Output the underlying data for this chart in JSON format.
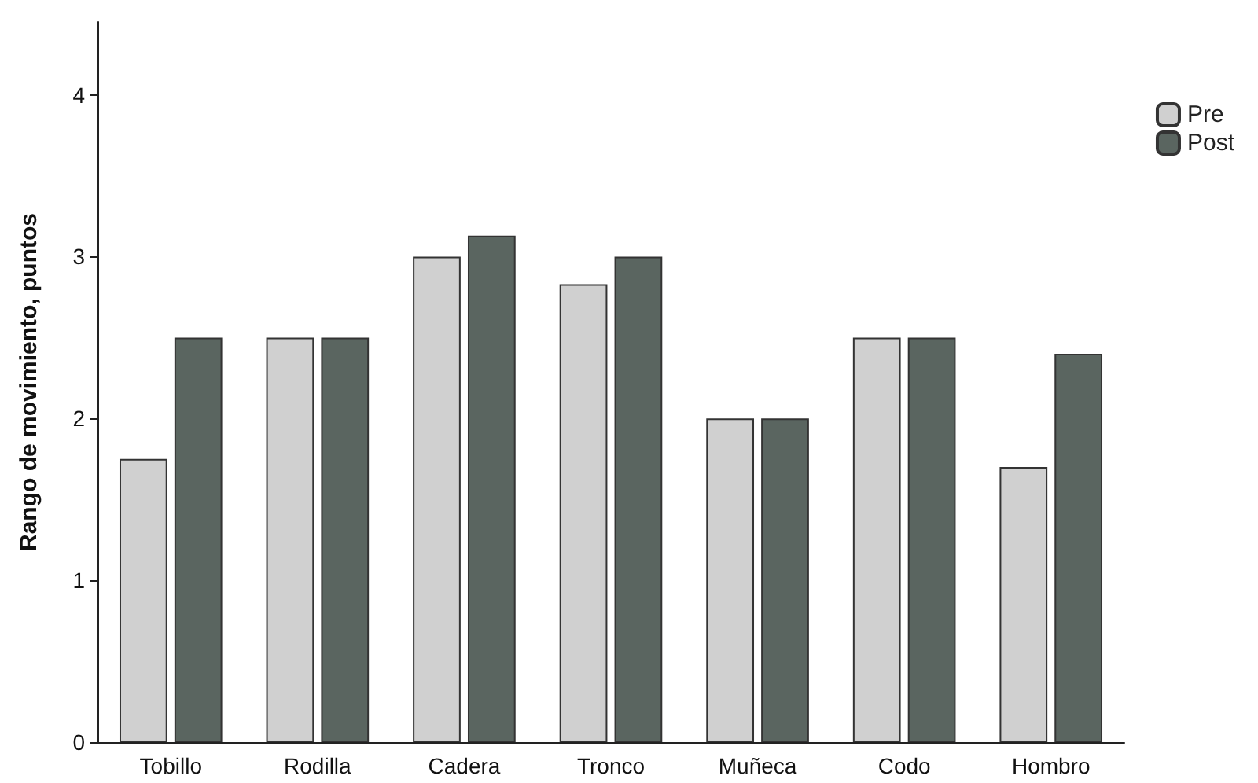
{
  "chart_data": {
    "type": "bar",
    "ylabel": "Rango de movimiento, puntos",
    "categories": [
      "Tobillo",
      "Rodilla",
      "Cadera",
      "Tronco",
      "Muñeca",
      "Codo",
      "Hombro"
    ],
    "series": [
      {
        "name": "Pre",
        "color": "#d0d0d0",
        "values": [
          1.75,
          2.5,
          3.0,
          2.83,
          2.0,
          2.5,
          1.7
        ]
      },
      {
        "name": "Post",
        "color": "#5a6560",
        "values": [
          2.5,
          2.5,
          3.13,
          3.0,
          2.0,
          2.5,
          2.4
        ]
      }
    ],
    "ylim": [
      0,
      4.45
    ],
    "yticks": [
      0,
      1,
      2,
      3,
      4
    ],
    "grid": false,
    "legend": "top right"
  }
}
